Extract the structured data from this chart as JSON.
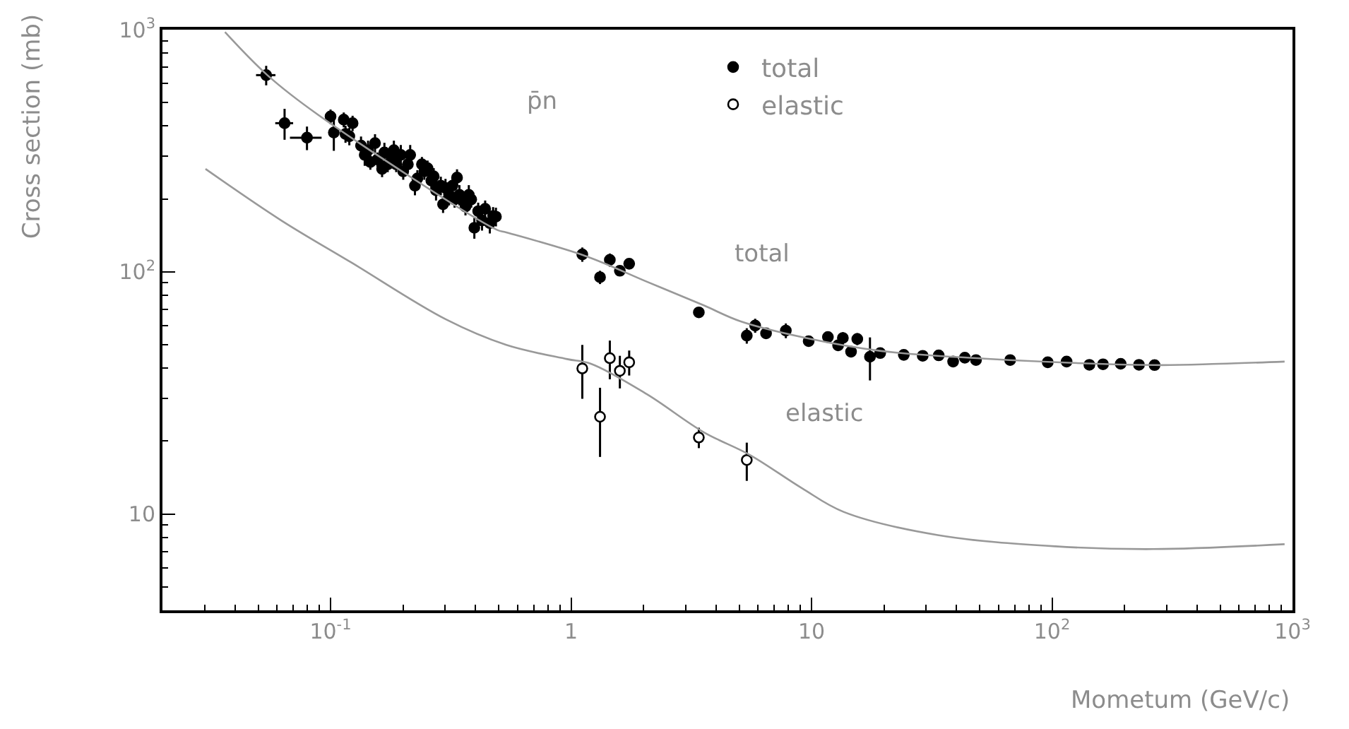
{
  "chart_data": {
    "type": "scatter",
    "xlabel": "Mometum (GeV/c)",
    "ylabel": "Cross section (mb)",
    "annotations": [
      "p̄n",
      "total",
      "elastic"
    ],
    "log": "xy",
    "legend": "top",
    "marker": "circle",
    "xlim": [
      0.02,
      1000
    ],
    "ylim": [
      4,
      1000
    ],
    "xticks": [
      {
        "value": 0.1,
        "label": "10$^{-1}$"
      },
      1,
      10,
      {
        "value": 100,
        "label": "10$^{2}$"
      },
      {
        "value": 1000,
        "label": "10$^{3}$"
      }
    ],
    "yticks": [
      10,
      {
        "value": 100,
        "label": "10$^{2}$"
      },
      {
        "value": 1000,
        "label": "10$^{3}$"
      }
    ],
    "series": [
      {
        "name": "total",
        "color": "#000000",
        "x": [
          0.054,
          0.0644,
          0.0798,
          0.1,
          0.1032,
          0.1135,
          0.1154,
          0.1235,
          0.1197,
          0.1339,
          0.1387,
          0.1432,
          0.1464,
          0.1531,
          0.1567,
          0.1638,
          0.1675,
          0.1729,
          0.1792,
          0.1834,
          0.1875,
          0.196,
          0.2006,
          0.2097,
          0.2144,
          0.2244,
          0.2296,
          0.2399,
          0.2455,
          0.2532,
          0.2625,
          0.2685,
          0.2746,
          0.2874,
          0.2937,
          0.3006,
          0.311,
          0.3214,
          0.328,
          0.3357,
          0.3436,
          0.3564,
          0.364,
          0.3758,
          0.3846,
          0.3963,
          0.4111,
          0.4266,
          0.4395,
          0.4595,
          0.4742,
          0.4872,
          1.114,
          1.32,
          1.45,
          1.596,
          1.745,
          3.4,
          5.38,
          5.83,
          6.47,
          7.82,
          9.73,
          11.7,
          12.9,
          13.5,
          14.6,
          15.5,
          17.5,
          19.3,
          24.2,
          29.0,
          33.8,
          38.8,
          43.4,
          48.3,
          67.0,
          96,
          115,
          143,
          163,
          193,
          230,
          267
        ],
        "values": [
          649,
          411,
          358,
          438,
          376,
          425,
          371,
          411,
          363,
          332,
          304,
          318,
          284,
          340,
          291,
          266,
          311,
          278,
          297,
          318,
          278,
          304,
          260,
          278,
          304,
          227,
          243,
          278,
          260,
          268,
          238,
          248,
          217,
          227,
          190,
          222,
          208,
          227,
          199,
          245,
          208,
          199,
          186,
          208,
          199,
          152,
          178,
          163,
          182,
          159,
          170,
          169,
          118,
          95,
          112,
          101,
          108,
          68,
          54.5,
          60,
          55.7,
          57.2,
          51.7,
          53.8,
          49.7,
          53.3,
          46.8,
          52.8,
          44.6,
          46.2,
          45.4,
          45.0,
          45.2,
          42.6,
          44.2,
          43.2,
          43.2,
          42.3,
          42.6,
          41.3,
          41.5,
          41.7,
          41.3,
          41.2
        ],
        "errors": [
          60,
          60,
          40,
          30,
          60,
          30,
          30,
          30,
          30,
          30,
          30,
          30,
          20,
          30,
          20,
          20,
          30,
          20,
          20,
          30,
          20,
          30,
          20,
          20,
          30,
          20,
          20,
          20,
          20,
          20,
          20,
          20,
          20,
          20,
          15,
          20,
          20,
          20,
          15,
          20,
          20,
          15,
          15,
          20,
          15,
          15,
          15,
          15,
          15,
          15,
          15,
          15,
          8,
          6,
          7,
          5,
          3,
          3,
          4,
          4,
          null,
          4,
          null,
          3,
          null,
          3,
          null,
          3,
          9,
          null,
          null,
          null,
          null,
          null,
          null,
          null,
          null,
          null,
          null,
          null,
          null,
          null,
          null,
          null
        ],
        "xerrors": [
          0.005,
          0.0055,
          0.012,
          null,
          null,
          null,
          null,
          null,
          null,
          null,
          null,
          null,
          null,
          null,
          null,
          null,
          null,
          null,
          null,
          null,
          null,
          null,
          null,
          null,
          null,
          null,
          null,
          null,
          null,
          null,
          null,
          null,
          null,
          null,
          null,
          null,
          null,
          null,
          null,
          null,
          null,
          null,
          null,
          null,
          null,
          null,
          null,
          null,
          null,
          null,
          null,
          null,
          null,
          null,
          null,
          null,
          null,
          null,
          null,
          null,
          null,
          null,
          null,
          null,
          null,
          null,
          null,
          null,
          null,
          null,
          null,
          null,
          null,
          null,
          null,
          null,
          null,
          null,
          null,
          null,
          null,
          null,
          null,
          null
        ]
      },
      {
        "name": "elastic",
        "color": "#ffffff",
        "x": [
          1.114,
          1.32,
          1.45,
          1.596,
          1.745,
          3.4,
          5.38
        ],
        "values": [
          39.9,
          25.2,
          44.0,
          39.0,
          42.3,
          20.7,
          16.7
        ],
        "errors": [
          10,
          8,
          8,
          6,
          5,
          2,
          3
        ]
      },
      {
        "type": "line",
        "color": "#999999",
        "marker": "none",
        "x": [
          0.0364,
          0.0546,
          0.0894,
          0.492,
          0.538,
          1.155,
          2.07,
          3.55,
          5.08,
          9.5,
          19.5,
          52.4,
          267,
          494,
          927
        ],
        "values": [
          977,
          649,
          443,
          149,
          145.5,
          116,
          91,
          72.8,
          62.4,
          53.3,
          47.1,
          43.8,
          41.2,
          41.7,
          42.6
        ]
      },
      {
        "type": "line",
        "color": "#999999",
        "marker": "none",
        "x": [
          0.0302,
          0.0624,
          0.1225,
          0.301,
          0.538,
          0.964,
          1.21,
          2.07,
          3.55,
          5.56,
          9.1,
          13.6,
          33.5,
          103,
          263,
          927
        ],
        "values": [
          266,
          163,
          109,
          63.7,
          49.9,
          43.6,
          41.7,
          31.2,
          21.8,
          17.5,
          12.8,
          10.2,
          8.18,
          7.35,
          7.16,
          7.5
        ]
      }
    ]
  }
}
